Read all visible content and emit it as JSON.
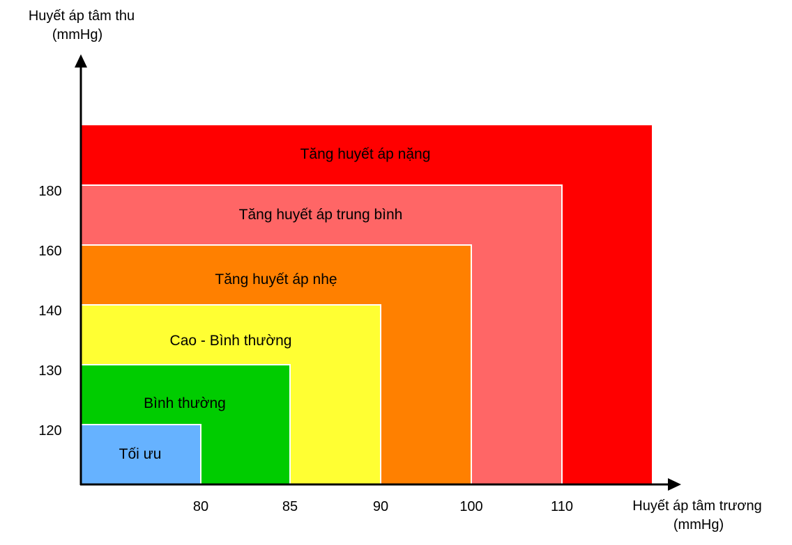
{
  "zones": [
    {
      "id": "severe",
      "label": "Tăng huyết áp nặng",
      "color": "#ff0000"
    },
    {
      "id": "moderate",
      "label": "Tăng huyết áp trung bình",
      "color": "#ff6666"
    },
    {
      "id": "mild",
      "label": "Tăng huyết áp nhẹ",
      "color": "#ff8000"
    },
    {
      "id": "high-normal",
      "label": "Cao - Bình thường",
      "color": "#ffff33"
    },
    {
      "id": "normal",
      "label": "Bình thường",
      "color": "#00cc00"
    },
    {
      "id": "optimal",
      "label": "Tối ưu",
      "color": "#66b2ff"
    }
  ],
  "y_axis": {
    "title_line1": "Huyết áp tâm thu",
    "title_line2": "(mmHg)",
    "ticks": [
      "120",
      "130",
      "140",
      "160",
      "180"
    ]
  },
  "x_axis": {
    "title_line1": "Huyết áp tâm trương",
    "title_line2": "(mmHg)",
    "ticks": [
      "80",
      "85",
      "90",
      "100",
      "110"
    ]
  },
  "border_color": "#ffffff",
  "axis_color": "#000000"
}
